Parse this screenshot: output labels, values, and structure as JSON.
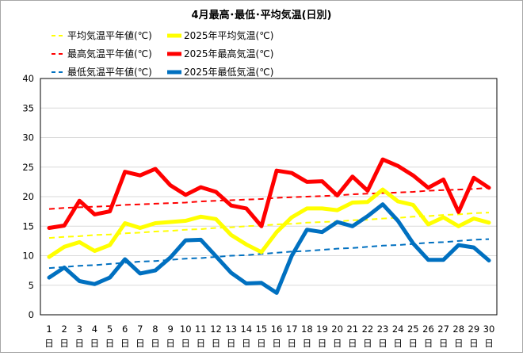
{
  "chart_data": {
    "type": "line",
    "title": "4月最高･最低･平均気温(日別)",
    "x": [
      "1",
      "2",
      "3",
      "4",
      "5",
      "6",
      "7",
      "8",
      "9",
      "10",
      "11",
      "12",
      "13",
      "14",
      "15",
      "16",
      "17",
      "18",
      "19",
      "20",
      "21",
      "22",
      "23",
      "24",
      "25",
      "26",
      "27",
      "28",
      "29",
      "30"
    ],
    "xtick_suffix": "日",
    "ylim": [
      0,
      40
    ],
    "yticks": [
      0,
      5,
      10,
      15,
      20,
      25,
      30,
      35,
      40
    ],
    "grid": true,
    "legend_position": "top",
    "series": [
      {
        "name": "平均気温平年値(℃)",
        "color": "#ffff00",
        "style": "dashed",
        "values": [
          13.0,
          13.2,
          13.3,
          13.5,
          13.6,
          13.8,
          13.9,
          14.1,
          14.2,
          14.4,
          14.5,
          14.7,
          14.8,
          15.0,
          15.1,
          15.3,
          15.4,
          15.6,
          15.7,
          15.8,
          16.0,
          16.1,
          16.3,
          16.4,
          16.6,
          16.7,
          16.9,
          17.0,
          17.2,
          17.3
        ]
      },
      {
        "name": "2025年平均気温(℃)",
        "color": "#ffff00",
        "style": "solid",
        "values": [
          9.8,
          11.5,
          12.3,
          10.8,
          11.8,
          15.5,
          14.7,
          15.5,
          15.7,
          15.9,
          16.6,
          16.2,
          13.5,
          11.9,
          10.6,
          14.0,
          16.5,
          18.0,
          18.0,
          17.7,
          19.0,
          19.1,
          21.2,
          19.2,
          18.6,
          15.3,
          16.5,
          15.0,
          16.3,
          15.6
        ]
      },
      {
        "name": "最高気温平年値(℃)",
        "color": "#ff0000",
        "style": "dashed",
        "values": [
          17.9,
          18.1,
          18.2,
          18.3,
          18.4,
          18.6,
          18.7,
          18.8,
          18.9,
          19.0,
          19.2,
          19.3,
          19.4,
          19.5,
          19.6,
          19.8,
          19.9,
          20.0,
          20.1,
          20.2,
          20.4,
          20.5,
          20.6,
          20.7,
          20.8,
          21.0,
          21.1,
          21.2,
          21.3,
          21.5
        ]
      },
      {
        "name": "2025年最高気温(℃)",
        "color": "#ff0000",
        "style": "solid",
        "values": [
          14.7,
          15.1,
          19.3,
          17.0,
          17.5,
          24.2,
          23.6,
          24.7,
          21.9,
          20.3,
          21.6,
          20.8,
          18.5,
          18.0,
          15.0,
          24.4,
          24.0,
          22.5,
          22.6,
          20.2,
          23.4,
          21.0,
          26.3,
          25.2,
          23.6,
          21.5,
          22.9,
          17.4,
          23.2,
          21.5
        ]
      },
      {
        "name": "最低気温平年値(℃)",
        "color": "#0070c0",
        "style": "dashed",
        "values": [
          7.9,
          8.1,
          8.3,
          8.4,
          8.6,
          8.8,
          9.0,
          9.1,
          9.3,
          9.5,
          9.6,
          9.8,
          10.0,
          10.1,
          10.3,
          10.5,
          10.7,
          10.8,
          11.0,
          11.2,
          11.3,
          11.5,
          11.7,
          11.8,
          12.0,
          12.2,
          12.3,
          12.5,
          12.7,
          12.8
        ]
      },
      {
        "name": "2025年最低気温(℃)",
        "color": "#0070c0",
        "style": "solid",
        "values": [
          6.3,
          8.0,
          5.7,
          5.2,
          6.3,
          9.4,
          7.0,
          7.5,
          9.7,
          12.6,
          12.7,
          9.9,
          7.1,
          5.3,
          5.4,
          3.7,
          10.0,
          14.4,
          14.0,
          15.7,
          15.0,
          16.7,
          18.7,
          15.9,
          12.1,
          9.3,
          9.3,
          11.8,
          11.4,
          9.2
        ]
      }
    ]
  }
}
